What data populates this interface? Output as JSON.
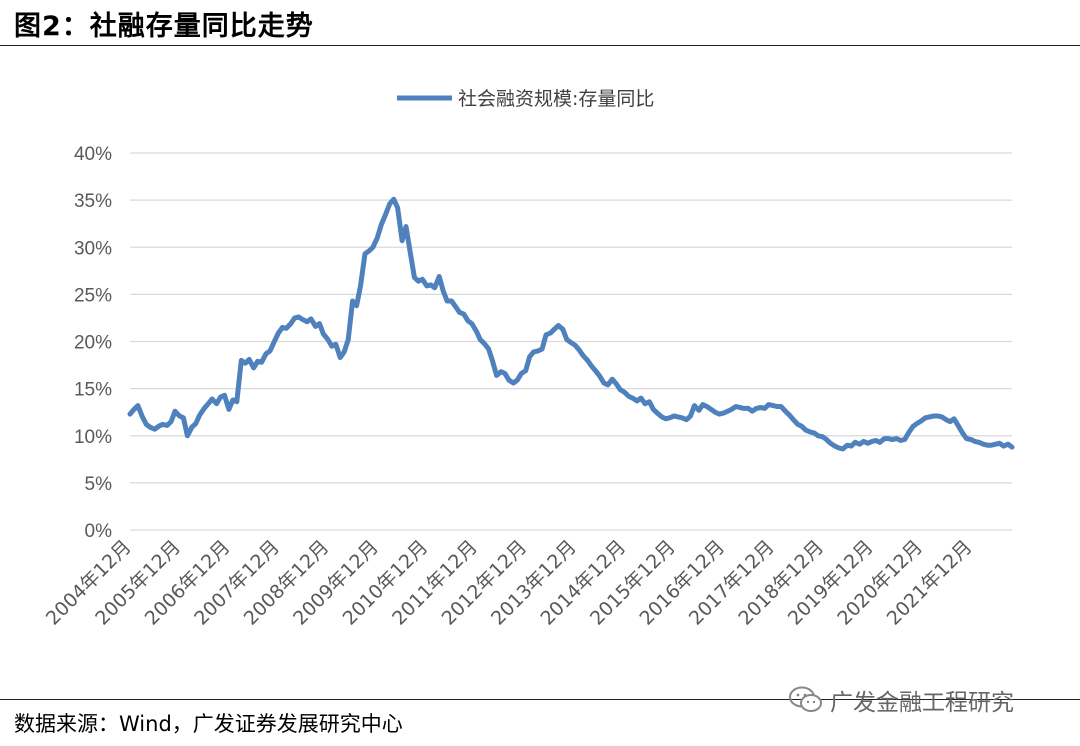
{
  "figure": {
    "title": "图2：社融存量同比走势",
    "source": "数据来源：Wind，广发证券发展研究中心",
    "watermark": "广发金融工程研究",
    "watermark_icon": "wechat-icon"
  },
  "chart_data": {
    "type": "line",
    "title": "",
    "xlabel": "",
    "ylabel": "",
    "ylim": [
      0,
      40
    ],
    "y_ticks": [
      "0%",
      "5%",
      "10%",
      "15%",
      "20%",
      "25%",
      "30%",
      "35%",
      "40%"
    ],
    "grid": true,
    "legend_position": "top-center",
    "categories": [
      "2004年12月",
      "2005年12月",
      "2006年12月",
      "2007年12月",
      "2008年12月",
      "2009年12月",
      "2010年12月",
      "2011年12月",
      "2012年12月",
      "2013年12月",
      "2014年12月",
      "2015年12月",
      "2016年12月",
      "2017年12月",
      "2018年12月",
      "2019年12月",
      "2020年12月",
      "2021年12月"
    ],
    "x_range": [
      "2004年12月",
      "2022年6月"
    ],
    "series": [
      {
        "name": "社会融资规模:存量同比",
        "color": "#4F81BD",
        "points": [
          [
            2004.92,
            12.3
          ],
          [
            2005.0,
            12.8
          ],
          [
            2005.08,
            13.2
          ],
          [
            2005.17,
            12.0
          ],
          [
            2005.25,
            11.2
          ],
          [
            2005.33,
            10.9
          ],
          [
            2005.42,
            10.7
          ],
          [
            2005.5,
            11.0
          ],
          [
            2005.58,
            11.2
          ],
          [
            2005.67,
            11.1
          ],
          [
            2005.75,
            11.5
          ],
          [
            2005.83,
            12.6
          ],
          [
            2005.92,
            12.1
          ],
          [
            2006.0,
            11.9
          ],
          [
            2006.08,
            10.0
          ],
          [
            2006.17,
            10.9
          ],
          [
            2006.25,
            11.3
          ],
          [
            2006.33,
            12.2
          ],
          [
            2006.42,
            12.9
          ],
          [
            2006.5,
            13.4
          ],
          [
            2006.58,
            13.9
          ],
          [
            2006.67,
            13.4
          ],
          [
            2006.75,
            14.1
          ],
          [
            2006.83,
            14.3
          ],
          [
            2006.92,
            12.8
          ],
          [
            2007.0,
            13.8
          ],
          [
            2007.08,
            13.6
          ],
          [
            2007.17,
            18.0
          ],
          [
            2007.25,
            17.7
          ],
          [
            2007.33,
            18.1
          ],
          [
            2007.42,
            17.2
          ],
          [
            2007.5,
            17.9
          ],
          [
            2007.58,
            17.8
          ],
          [
            2007.67,
            18.7
          ],
          [
            2007.75,
            19.0
          ],
          [
            2007.83,
            19.9
          ],
          [
            2007.92,
            20.9
          ],
          [
            2008.0,
            21.5
          ],
          [
            2008.08,
            21.4
          ],
          [
            2008.17,
            21.9
          ],
          [
            2008.25,
            22.5
          ],
          [
            2008.33,
            22.6
          ],
          [
            2008.42,
            22.3
          ],
          [
            2008.5,
            22.1
          ],
          [
            2008.58,
            22.4
          ],
          [
            2008.67,
            21.6
          ],
          [
            2008.75,
            21.9
          ],
          [
            2008.83,
            20.8
          ],
          [
            2008.92,
            20.2
          ],
          [
            2009.0,
            19.5
          ],
          [
            2009.08,
            19.7
          ],
          [
            2009.17,
            18.3
          ],
          [
            2009.25,
            18.9
          ],
          [
            2009.33,
            20.2
          ],
          [
            2009.42,
            24.3
          ],
          [
            2009.5,
            23.8
          ],
          [
            2009.58,
            25.9
          ],
          [
            2009.67,
            29.3
          ],
          [
            2009.75,
            29.6
          ],
          [
            2009.83,
            30.0
          ],
          [
            2009.92,
            31.0
          ],
          [
            2010.0,
            32.4
          ],
          [
            2010.08,
            33.4
          ],
          [
            2010.17,
            34.6
          ],
          [
            2010.25,
            35.1
          ],
          [
            2010.33,
            34.2
          ],
          [
            2010.42,
            30.7
          ],
          [
            2010.5,
            32.2
          ],
          [
            2010.58,
            29.6
          ],
          [
            2010.67,
            26.8
          ],
          [
            2010.75,
            26.4
          ],
          [
            2010.83,
            26.6
          ],
          [
            2010.92,
            25.9
          ],
          [
            2011.0,
            26.0
          ],
          [
            2011.08,
            25.7
          ],
          [
            2011.17,
            26.9
          ],
          [
            2011.25,
            25.4
          ],
          [
            2011.33,
            24.3
          ],
          [
            2011.42,
            24.3
          ],
          [
            2011.5,
            23.7
          ],
          [
            2011.58,
            23.1
          ],
          [
            2011.67,
            22.9
          ],
          [
            2011.75,
            22.2
          ],
          [
            2011.83,
            21.9
          ],
          [
            2011.92,
            21.1
          ],
          [
            2012.0,
            20.2
          ],
          [
            2012.08,
            19.8
          ],
          [
            2012.17,
            19.2
          ],
          [
            2012.25,
            17.9
          ],
          [
            2012.33,
            16.4
          ],
          [
            2012.42,
            16.8
          ],
          [
            2012.5,
            16.6
          ],
          [
            2012.58,
            15.9
          ],
          [
            2012.67,
            15.6
          ],
          [
            2012.75,
            15.9
          ],
          [
            2012.83,
            16.6
          ],
          [
            2012.92,
            16.9
          ],
          [
            2013.0,
            18.4
          ],
          [
            2013.08,
            18.9
          ],
          [
            2013.17,
            19.0
          ],
          [
            2013.25,
            19.2
          ],
          [
            2013.33,
            20.7
          ],
          [
            2013.42,
            20.9
          ],
          [
            2013.5,
            21.3
          ],
          [
            2013.58,
            21.7
          ],
          [
            2013.67,
            21.3
          ],
          [
            2013.75,
            20.2
          ],
          [
            2013.83,
            19.9
          ],
          [
            2013.92,
            19.6
          ],
          [
            2014.0,
            19.1
          ],
          [
            2014.08,
            18.5
          ],
          [
            2014.17,
            18.0
          ],
          [
            2014.25,
            17.4
          ],
          [
            2014.33,
            16.9
          ],
          [
            2014.42,
            16.3
          ],
          [
            2014.5,
            15.6
          ],
          [
            2014.58,
            15.4
          ],
          [
            2014.67,
            16.0
          ],
          [
            2014.75,
            15.5
          ],
          [
            2014.83,
            14.9
          ],
          [
            2014.92,
            14.6
          ],
          [
            2015.0,
            14.2
          ],
          [
            2015.08,
            14.0
          ],
          [
            2015.17,
            13.7
          ],
          [
            2015.25,
            14.0
          ],
          [
            2015.33,
            13.4
          ],
          [
            2015.42,
            13.6
          ],
          [
            2015.5,
            12.8
          ],
          [
            2015.58,
            12.4
          ],
          [
            2015.67,
            12.0
          ],
          [
            2015.75,
            11.8
          ],
          [
            2015.83,
            11.9
          ],
          [
            2015.92,
            12.1
          ],
          [
            2016.0,
            12.0
          ],
          [
            2016.08,
            11.9
          ],
          [
            2016.17,
            11.7
          ],
          [
            2016.25,
            12.1
          ],
          [
            2016.33,
            13.2
          ],
          [
            2016.42,
            12.7
          ],
          [
            2016.5,
            13.3
          ],
          [
            2016.58,
            13.1
          ],
          [
            2016.67,
            12.8
          ],
          [
            2016.75,
            12.5
          ],
          [
            2016.83,
            12.3
          ],
          [
            2016.92,
            12.4
          ],
          [
            2017.0,
            12.6
          ],
          [
            2017.08,
            12.8
          ],
          [
            2017.17,
            13.1
          ],
          [
            2017.25,
            13.0
          ],
          [
            2017.33,
            12.9
          ],
          [
            2017.42,
            12.9
          ],
          [
            2017.5,
            12.6
          ],
          [
            2017.58,
            12.9
          ],
          [
            2017.67,
            13.0
          ],
          [
            2017.75,
            12.9
          ],
          [
            2017.83,
            13.3
          ],
          [
            2017.92,
            13.2
          ],
          [
            2018.0,
            13.1
          ],
          [
            2018.08,
            13.1
          ],
          [
            2018.17,
            12.6
          ],
          [
            2018.25,
            12.2
          ],
          [
            2018.33,
            11.7
          ],
          [
            2018.42,
            11.2
          ],
          [
            2018.5,
            11.0
          ],
          [
            2018.58,
            10.6
          ],
          [
            2018.67,
            10.4
          ],
          [
            2018.75,
            10.3
          ],
          [
            2018.83,
            10.0
          ],
          [
            2018.92,
            9.9
          ],
          [
            2019.0,
            9.6
          ],
          [
            2019.08,
            9.2
          ],
          [
            2019.17,
            8.9
          ],
          [
            2019.25,
            8.7
          ],
          [
            2019.33,
            8.6
          ],
          [
            2019.42,
            9.0
          ],
          [
            2019.5,
            8.9
          ],
          [
            2019.58,
            9.3
          ],
          [
            2019.67,
            9.1
          ],
          [
            2019.75,
            9.4
          ],
          [
            2019.83,
            9.2
          ],
          [
            2019.92,
            9.4
          ],
          [
            2020.0,
            9.5
          ],
          [
            2020.08,
            9.3
          ],
          [
            2020.17,
            9.7
          ],
          [
            2020.25,
            9.7
          ],
          [
            2020.33,
            9.6
          ],
          [
            2020.42,
            9.7
          ],
          [
            2020.5,
            9.5
          ],
          [
            2020.58,
            9.6
          ],
          [
            2020.67,
            10.4
          ],
          [
            2020.75,
            11.0
          ],
          [
            2020.83,
            11.3
          ],
          [
            2020.92,
            11.6
          ],
          [
            2021.0,
            11.9
          ],
          [
            2021.08,
            12.0
          ],
          [
            2021.17,
            12.1
          ],
          [
            2021.25,
            12.1
          ],
          [
            2021.33,
            12.0
          ],
          [
            2021.42,
            11.7
          ],
          [
            2021.5,
            11.5
          ],
          [
            2021.58,
            11.8
          ],
          [
            2021.67,
            11.0
          ],
          [
            2021.75,
            10.3
          ],
          [
            2021.83,
            9.7
          ],
          [
            2021.92,
            9.6
          ],
          [
            2022.0,
            9.4
          ],
          [
            2022.08,
            9.3
          ],
          [
            2022.17,
            9.1
          ],
          [
            2022.25,
            9.0
          ],
          [
            2022.33,
            9.0
          ],
          [
            2022.42,
            9.1
          ],
          [
            2022.5,
            9.2
          ],
          [
            2022.58,
            8.9
          ],
          [
            2022.67,
            9.1
          ],
          [
            2022.75,
            8.8
          ]
        ]
      }
    ]
  }
}
